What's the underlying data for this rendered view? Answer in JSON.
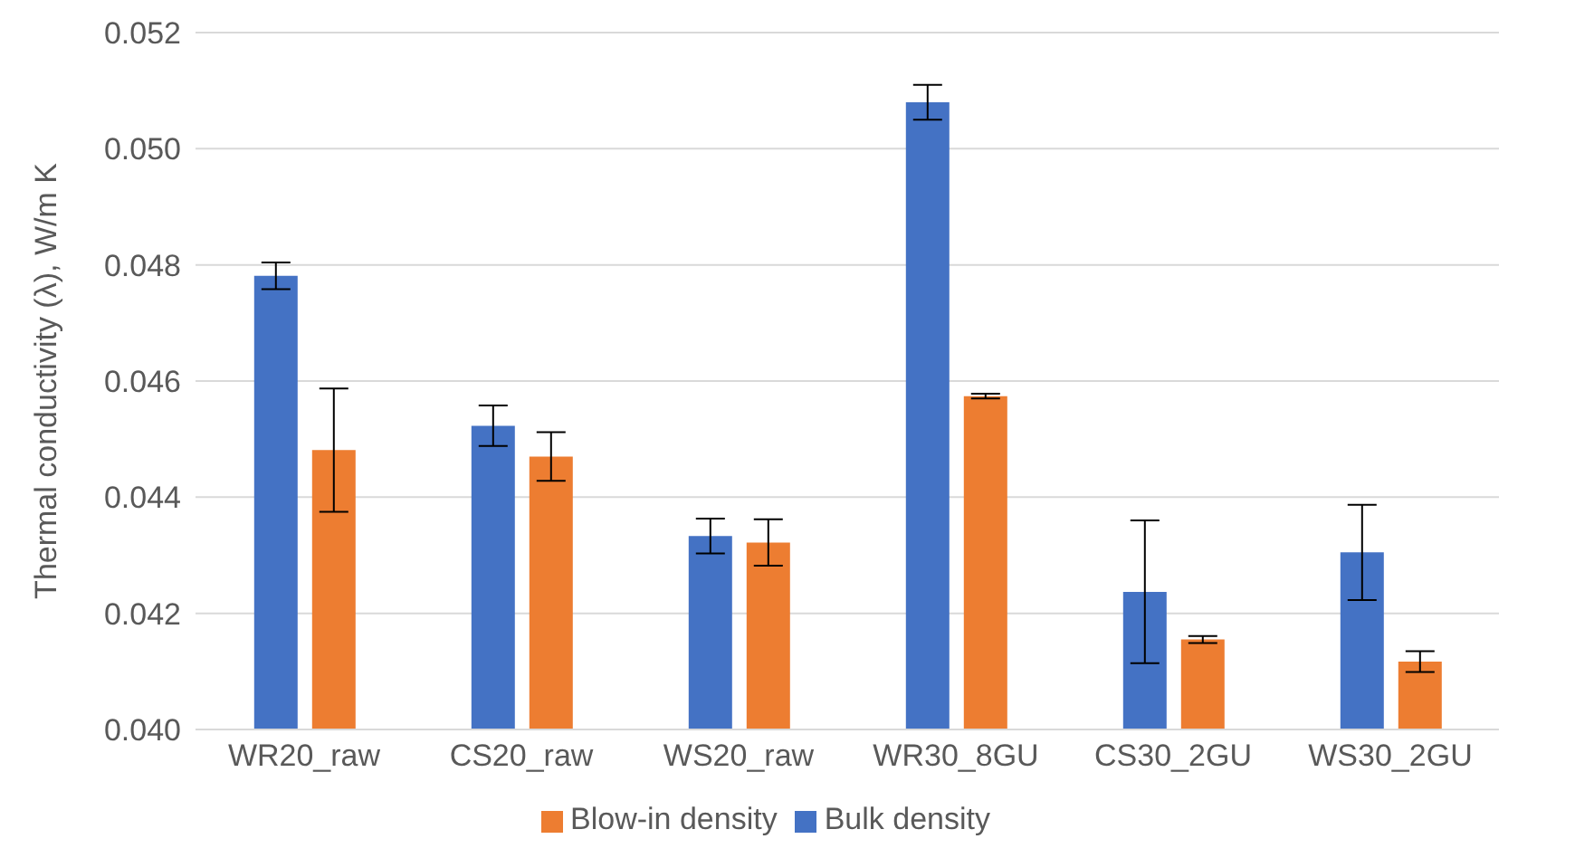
{
  "chart_data": {
    "type": "bar",
    "ylabel": "Thermal conductivity (λ), W/m K",
    "categories": [
      "WR20_raw",
      "CS20_raw",
      "WS20_raw",
      "WR30_8GU",
      "CS30_2GU",
      "WS30_2GU"
    ],
    "series": [
      {
        "name": "Bulk density",
        "color": "#4472c4",
        "values": [
          0.04781,
          0.04523,
          0.04333,
          0.0508,
          0.04237,
          0.04305
        ],
        "errors": [
          0.00023,
          0.00035,
          0.0003,
          0.0003,
          0.00123,
          0.00082
        ]
      },
      {
        "name": "Blow-in density",
        "color": "#ed7d31",
        "values": [
          0.04481,
          0.0447,
          0.04322,
          0.04574,
          0.04155,
          0.04117
        ],
        "errors": [
          0.00106,
          0.00042,
          0.0004,
          4e-05,
          6e-05,
          0.00018
        ]
      }
    ],
    "ylim": [
      0.04,
      0.052
    ],
    "yticks": [
      {
        "value": 0.04,
        "label": "0.040"
      },
      {
        "value": 0.042,
        "label": "0.042"
      },
      {
        "value": 0.044,
        "label": "0.044"
      },
      {
        "value": 0.046,
        "label": "0.046"
      },
      {
        "value": 0.048,
        "label": "0.048"
      },
      {
        "value": 0.05,
        "label": "0.050"
      },
      {
        "value": 0.052,
        "label": "0.052"
      }
    ],
    "grid": "y",
    "legend": "bottom"
  }
}
